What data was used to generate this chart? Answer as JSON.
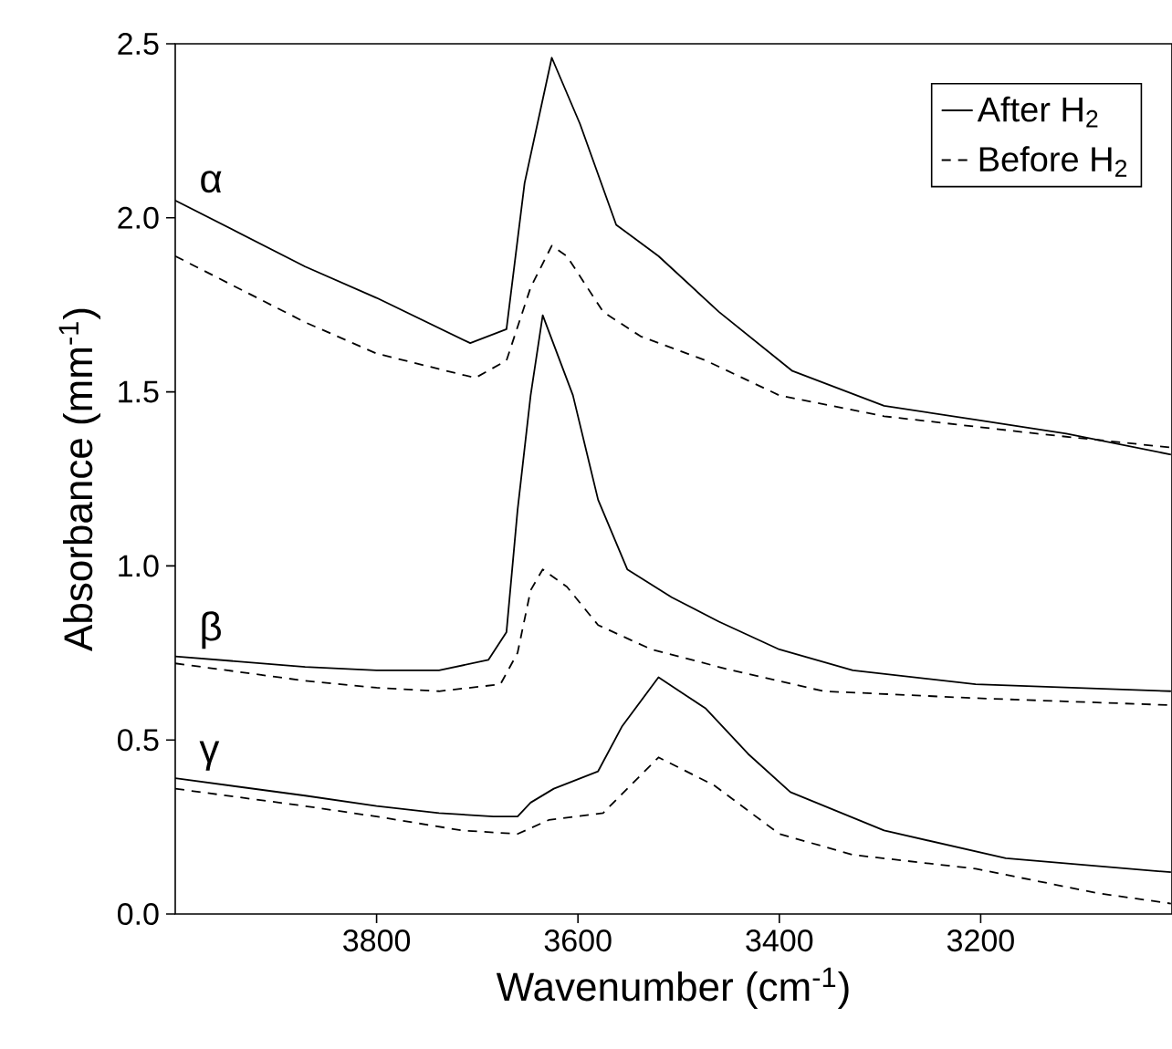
{
  "chart_data": {
    "type": "line",
    "xlabel": "Wavenumber (cm$^{-1}$)",
    "ylabel": "Absorbance (mm$^{-1}$)",
    "xlim": [
      4000,
      3010
    ],
    "ylim": [
      0,
      2.5
    ],
    "xticks": [
      3800,
      3600,
      3400,
      3200
    ],
    "yticks": [
      {
        "value": 0,
        "label": "0.0"
      },
      0.5,
      {
        "value": 1,
        "label": "1.0"
      },
      1.5,
      {
        "value": 2,
        "label": "2.0"
      },
      2.5
    ],
    "legend": "top right",
    "annotations": [
      "α",
      "β",
      "γ"
    ],
    "series": [
      {
        "name": "After H$_{2}$",
        "color": "#000000",
        "line_style": "solid",
        "x": [
          4000,
          3871,
          3800,
          3707,
          3671,
          3653,
          3626,
          3598,
          3562,
          3520,
          3460,
          3387,
          3296,
          3205,
          3115,
          3011
        ],
        "values": [
          2.05,
          1.86,
          1.77,
          1.64,
          1.68,
          2.1,
          2.46,
          2.27,
          1.98,
          1.89,
          1.73,
          1.56,
          1.46,
          1.42,
          1.38,
          1.32
        ]
      },
      {
        "name": "Before H$_{2}$",
        "color": "#000000",
        "line_style": "dashed",
        "x": [
          4000,
          3871,
          3800,
          3702,
          3671,
          3647,
          3626,
          3611,
          3575,
          3538,
          3473,
          3400,
          3296,
          3144,
          3011
        ],
        "values": [
          1.89,
          1.7,
          1.61,
          1.54,
          1.59,
          1.8,
          1.92,
          1.89,
          1.73,
          1.66,
          1.59,
          1.49,
          1.43,
          1.38,
          1.34
        ]
      },
      {
        "color": "#000000",
        "line_style": "solid",
        "x": [
          4000,
          3871,
          3800,
          3738,
          3689,
          3671,
          3660,
          3647,
          3635,
          3605,
          3580,
          3551,
          3507,
          3460,
          3400,
          3327,
          3205,
          3011
        ],
        "values": [
          0.74,
          0.71,
          0.7,
          0.7,
          0.73,
          0.81,
          1.16,
          1.49,
          1.72,
          1.49,
          1.19,
          0.99,
          0.91,
          0.84,
          0.76,
          0.7,
          0.66,
          0.64
        ]
      },
      {
        "color": "#000000",
        "line_style": "dashed",
        "x": [
          4000,
          3871,
          3800,
          3738,
          3677,
          3660,
          3647,
          3635,
          3611,
          3580,
          3527,
          3447,
          3356,
          3205,
          3011
        ],
        "values": [
          0.72,
          0.67,
          0.65,
          0.64,
          0.66,
          0.75,
          0.93,
          0.99,
          0.94,
          0.83,
          0.76,
          0.7,
          0.64,
          0.62,
          0.6
        ]
      },
      {
        "color": "#000000",
        "line_style": "solid",
        "x": [
          4000,
          3871,
          3800,
          3738,
          3684,
          3660,
          3647,
          3624,
          3580,
          3556,
          3520,
          3473,
          3431,
          3389,
          3296,
          3175,
          3011
        ],
        "values": [
          0.39,
          0.34,
          0.31,
          0.29,
          0.28,
          0.28,
          0.32,
          0.36,
          0.41,
          0.54,
          0.68,
          0.59,
          0.46,
          0.35,
          0.24,
          0.16,
          0.12
        ]
      },
      {
        "color": "#000000",
        "line_style": "dashed",
        "x": [
          4000,
          3871,
          3800,
          3715,
          3660,
          3629,
          3575,
          3551,
          3520,
          3465,
          3400,
          3327,
          3205,
          3084,
          3011
        ],
        "values": [
          0.36,
          0.31,
          0.28,
          0.24,
          0.23,
          0.27,
          0.29,
          0.36,
          0.45,
          0.37,
          0.23,
          0.17,
          0.13,
          0.06,
          0.03
        ]
      }
    ]
  }
}
